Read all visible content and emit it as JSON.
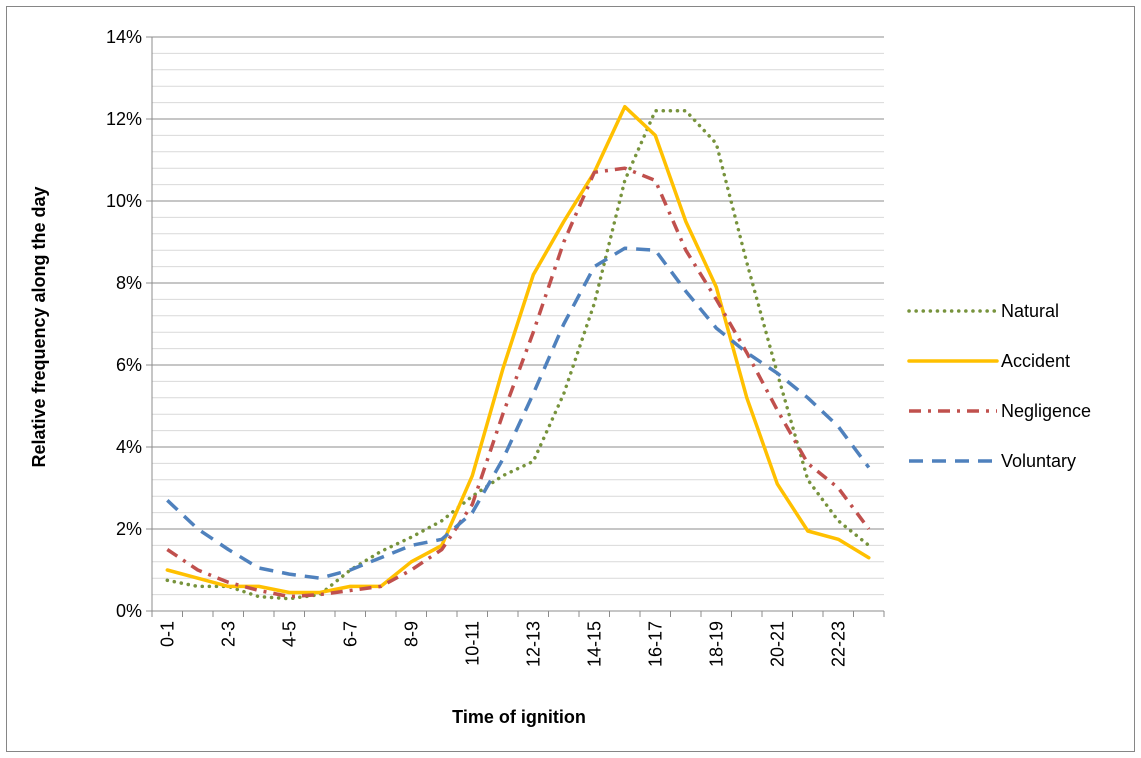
{
  "chart_data": {
    "type": "line",
    "title": "",
    "xlabel": "Time of ignition",
    "ylabel": "Relative frequency  along the day",
    "ylim": [
      0,
      14
    ],
    "y_major_ticks": [
      0,
      2,
      4,
      6,
      8,
      10,
      12,
      14
    ],
    "y_tick_labels": [
      "0%",
      "2%",
      "4%",
      "6%",
      "8%",
      "10%",
      "12%",
      "14%"
    ],
    "y_minor_step": 0.4,
    "grid": true,
    "legend_position": "right",
    "x": [
      "0-1",
      "1-2",
      "2-3",
      "3-4",
      "4-5",
      "5-6",
      "6-7",
      "7-8",
      "8-9",
      "9-10",
      "10-11",
      "11-12",
      "12-13",
      "13-14",
      "14-15",
      "15-16",
      "16-17",
      "17-18",
      "18-19",
      "19-20",
      "20-21",
      "21-22",
      "22-23",
      "23-24"
    ],
    "x_tick_labels": [
      "0-1",
      "2-3",
      "4-5",
      "6-7",
      "8-9",
      "10-11",
      "12-13",
      "14-15",
      "16-17",
      "18-19",
      "20-21",
      "22-23"
    ],
    "series": [
      {
        "name": "Natural",
        "color": "#77933C",
        "dash": "dotted",
        "values": [
          0.75,
          0.6,
          0.6,
          0.35,
          0.3,
          0.4,
          1.0,
          1.45,
          1.8,
          2.2,
          2.8,
          3.3,
          3.65,
          5.3,
          7.5,
          10.5,
          12.2,
          12.2,
          11.4,
          8.5,
          5.8,
          3.2,
          2.2,
          1.6
        ]
      },
      {
        "name": "Accident",
        "color": "#FFC000",
        "dash": "solid",
        "values": [
          1.0,
          0.8,
          0.6,
          0.6,
          0.45,
          0.45,
          0.6,
          0.6,
          1.2,
          1.6,
          3.3,
          5.9,
          8.2,
          9.5,
          10.7,
          12.3,
          11.6,
          9.5,
          7.9,
          5.2,
          3.1,
          1.95,
          1.75,
          1.3
        ]
      },
      {
        "name": "Negligence",
        "color": "#C0504D",
        "dash": "dashdot",
        "values": [
          1.5,
          1.0,
          0.7,
          0.5,
          0.35,
          0.4,
          0.5,
          0.6,
          1.0,
          1.5,
          2.6,
          4.8,
          6.8,
          9.0,
          10.7,
          10.8,
          10.5,
          8.8,
          7.6,
          6.3,
          4.9,
          3.6,
          3.0,
          2.0
        ]
      },
      {
        "name": "Voluntary",
        "color": "#4F81BD",
        "dash": "dashed",
        "values": [
          2.7,
          2.0,
          1.5,
          1.05,
          0.9,
          0.8,
          1.0,
          1.3,
          1.6,
          1.75,
          2.4,
          3.7,
          5.3,
          7.0,
          8.4,
          8.85,
          8.8,
          7.8,
          6.9,
          6.3,
          5.8,
          5.2,
          4.5,
          3.5
        ]
      }
    ]
  }
}
